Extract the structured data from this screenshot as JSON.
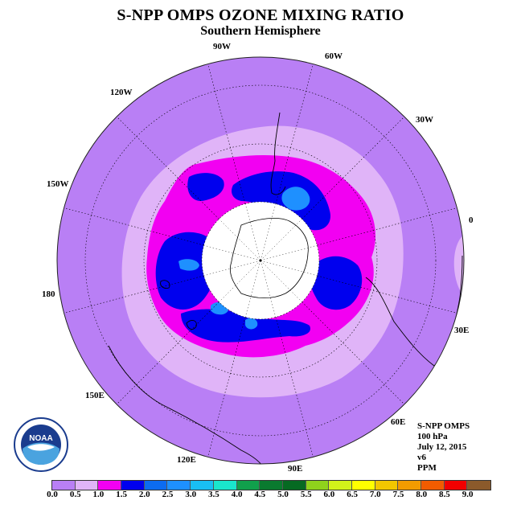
{
  "title": "S-NPP OMPS OZONE MIXING RATIO",
  "subtitle": "Southern Hemisphere",
  "longitude_labels": [
    "90W",
    "60W",
    "30W",
    "0",
    "30E",
    "60E",
    "90E",
    "120E",
    "150E",
    "180",
    "150W",
    "120W"
  ],
  "meta": {
    "instrument": "S-NPP OMPS",
    "level": "100 hPa",
    "date": "July 12, 2015",
    "version": "v6",
    "units": "PPM"
  },
  "logo_text": "NOAA",
  "colorbar": {
    "ticks": [
      "0.0",
      "0.5",
      "1.0",
      "1.5",
      "2.0",
      "2.5",
      "3.0",
      "3.5",
      "4.0",
      "4.5",
      "5.0",
      "5.5",
      "6.0",
      "6.5",
      "7.0",
      "7.5",
      "8.0",
      "8.5",
      "9.0"
    ],
    "colors": [
      "#b97ff5",
      "#e0b4f8",
      "#f200f2",
      "#0000ee",
      "#0c6cf0",
      "#1e90ff",
      "#19bff3",
      "#1ae6cc",
      "#11a04c",
      "#0a7a2f",
      "#066a22",
      "#8fd21c",
      "#d2f21a",
      "#ffff00",
      "#f2c700",
      "#f29b00",
      "#f25c00",
      "#f20000",
      "#8b5a2b"
    ]
  },
  "map_colors": {
    "background": "#b97ff5",
    "ring": "#e0b4f8",
    "magenta": "#f200f2",
    "blue": "#0000ee",
    "lightblue": "#1e90ff",
    "pole_cap": "#ffffff"
  }
}
